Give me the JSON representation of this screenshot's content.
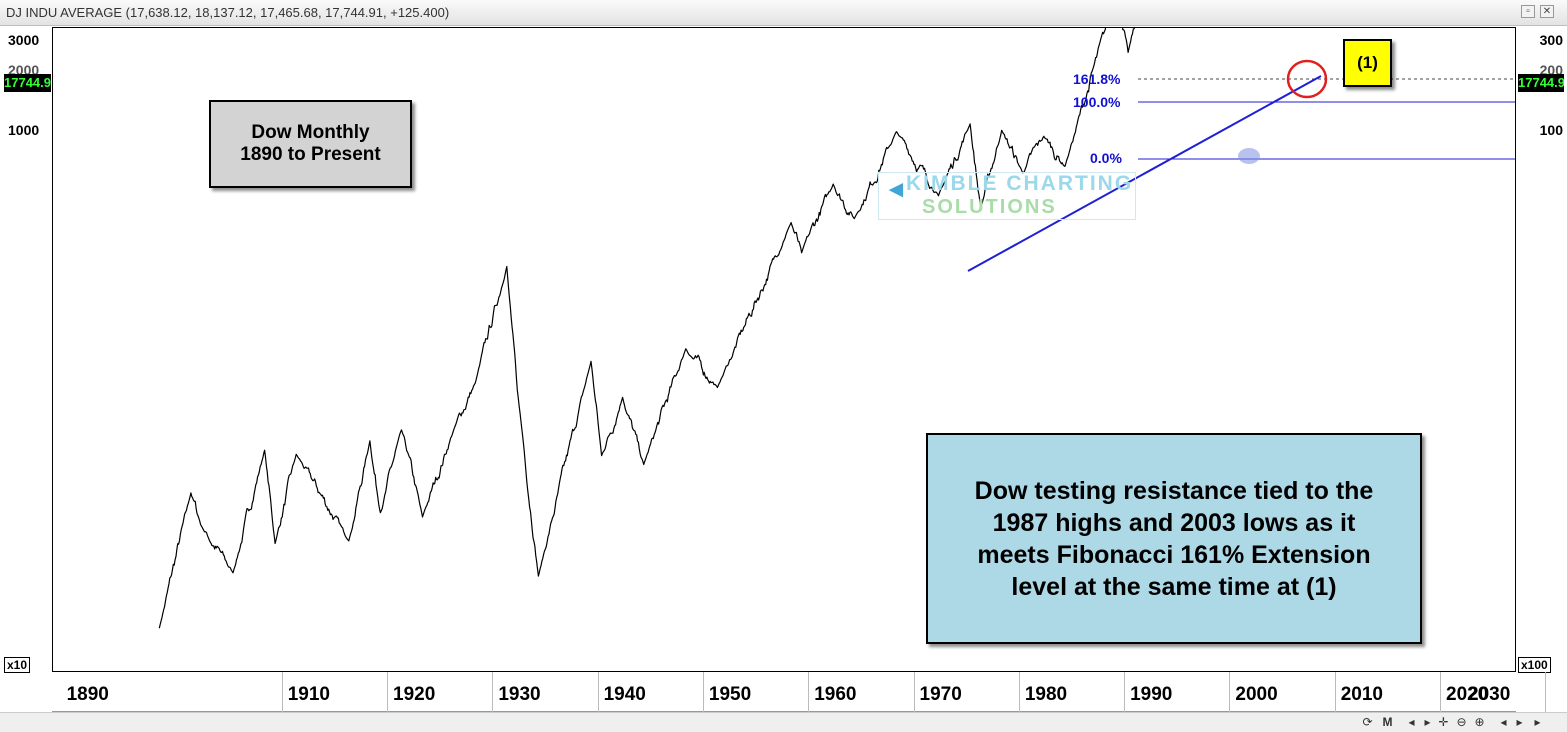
{
  "window": {
    "title": "DJ INDU AVERAGE (17,638.12, 18,137.12, 17,465.68, 17,744.91, +125.400)"
  },
  "axes": {
    "left_ticks": [
      "3000",
      "2000",
      "1000"
    ],
    "right_ticks": [
      "300",
      "200",
      "100"
    ],
    "left_badge": "17744.91",
    "right_badge": "17744.91",
    "left_multiplier": "x10",
    "right_multiplier": "x100",
    "x_ticks": [
      "1890",
      "1910",
      "1920",
      "1930",
      "1940",
      "1950",
      "1960",
      "1970",
      "1980",
      "1990",
      "2000",
      "2010",
      "2020",
      "2030"
    ]
  },
  "annotations": {
    "title_box_line1": "Dow Monthly",
    "title_box_line2": "1890 to Present",
    "marker_label": "(1)",
    "fib_top": "161.8%",
    "fib_mid": "100.0%",
    "fib_low": "0.0%",
    "watermark_line1": "KIMBLE CHARTING",
    "watermark_line2": "SOLUTIONS",
    "note_line1": "Dow testing resistance tied to the",
    "note_line2": "1987 highs and 2003 lows as it",
    "note_line3": "meets Fibonacci 161% Extension",
    "note_line4": "level at the same time at (1)"
  },
  "colors": {
    "price_line": "#000000",
    "trendline": "#1f1fd6",
    "fib_lines": "#1f1fd6",
    "circle_marker": "#e02020",
    "marker_box": "#ffff00",
    "note_box": "#add8e6",
    "title_box": "#d3d3d3"
  },
  "chart_data": {
    "type": "line",
    "title": "DJ INDU AVERAGE",
    "scale": "log",
    "ylim": [
      27,
      24000
    ],
    "xlim": [
      1886,
      2030
    ],
    "series": [
      {
        "values_note_free": true,
        "x": [
          1896,
          1899,
          1900,
          1903,
          1906,
          1907,
          1909,
          1914,
          1916,
          1917,
          1919,
          1921,
          1924,
          1926,
          1929,
          1930,
          1932,
          1937,
          1938,
          1940,
          1942,
          1946,
          1949,
          1956,
          1957,
          1960,
          1962,
          1966,
          1970,
          1973,
          1974,
          1976,
          1978,
          1980,
          1982,
          1987,
          1988,
          1990,
          1994,
          1995,
          1999,
          2000,
          2002,
          2003,
          2007,
          2009,
          2010,
          2013,
          2014,
          2015
        ],
        "values": [
          29,
          76,
          60,
          43,
          103,
          53,
          100,
          54,
          110,
          66,
          119,
          64,
          120,
          166,
          381,
          158,
          42,
          194,
          99,
          150,
          93,
          212,
          161,
          521,
          420,
          685,
          536,
          995,
          631,
          1052,
          577,
          1005,
          742,
          963,
          777,
          2722,
          1750,
          2999,
          3834,
          5117,
          11497,
          9796,
          7286,
          8062,
          14164,
          6547,
          10428,
          15000,
          16580,
          17744
        ]
      }
    ]
  }
}
